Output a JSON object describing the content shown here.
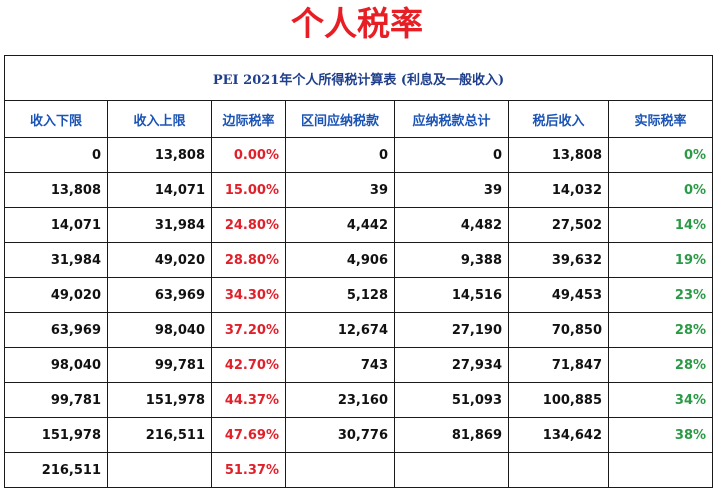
{
  "title": "个人税率",
  "table": {
    "caption": "PEI 2021年个人所得税计算表 (利息及一般收入)",
    "headers": [
      "收入下限",
      "收入上限",
      "边际税率",
      "区间应纳税款",
      "应纳税款总计",
      "税后收入",
      "实际税率"
    ],
    "rows": [
      [
        "0",
        "13,808",
        "0.00%",
        "0",
        "0",
        "13,808",
        "0%"
      ],
      [
        "13,808",
        "14,071",
        "15.00%",
        "39",
        "39",
        "14,032",
        "0%"
      ],
      [
        "14,071",
        "31,984",
        "24.80%",
        "4,442",
        "4,482",
        "27,502",
        "14%"
      ],
      [
        "31,984",
        "49,020",
        "28.80%",
        "4,906",
        "9,388",
        "39,632",
        "19%"
      ],
      [
        "49,020",
        "63,969",
        "34.30%",
        "5,128",
        "14,516",
        "49,453",
        "23%"
      ],
      [
        "63,969",
        "98,040",
        "37.20%",
        "12,674",
        "27,190",
        "70,850",
        "28%"
      ],
      [
        "98,040",
        "99,781",
        "42.70%",
        "743",
        "27,934",
        "71,847",
        "28%"
      ],
      [
        "99,781",
        "151,978",
        "44.37%",
        "23,160",
        "51,093",
        "100,885",
        "34%"
      ],
      [
        "151,978",
        "216,511",
        "47.69%",
        "30,776",
        "81,869",
        "134,642",
        "38%"
      ],
      [
        "216,511",
        "",
        "51.37%",
        "",
        "",
        "",
        ""
      ]
    ]
  },
  "colors": {
    "title": "#e81e25",
    "caption": "#1f3f8c",
    "header": "#1b54b5",
    "marginal_rate": "#e0202a",
    "effective_rate": "#2a9a45"
  }
}
